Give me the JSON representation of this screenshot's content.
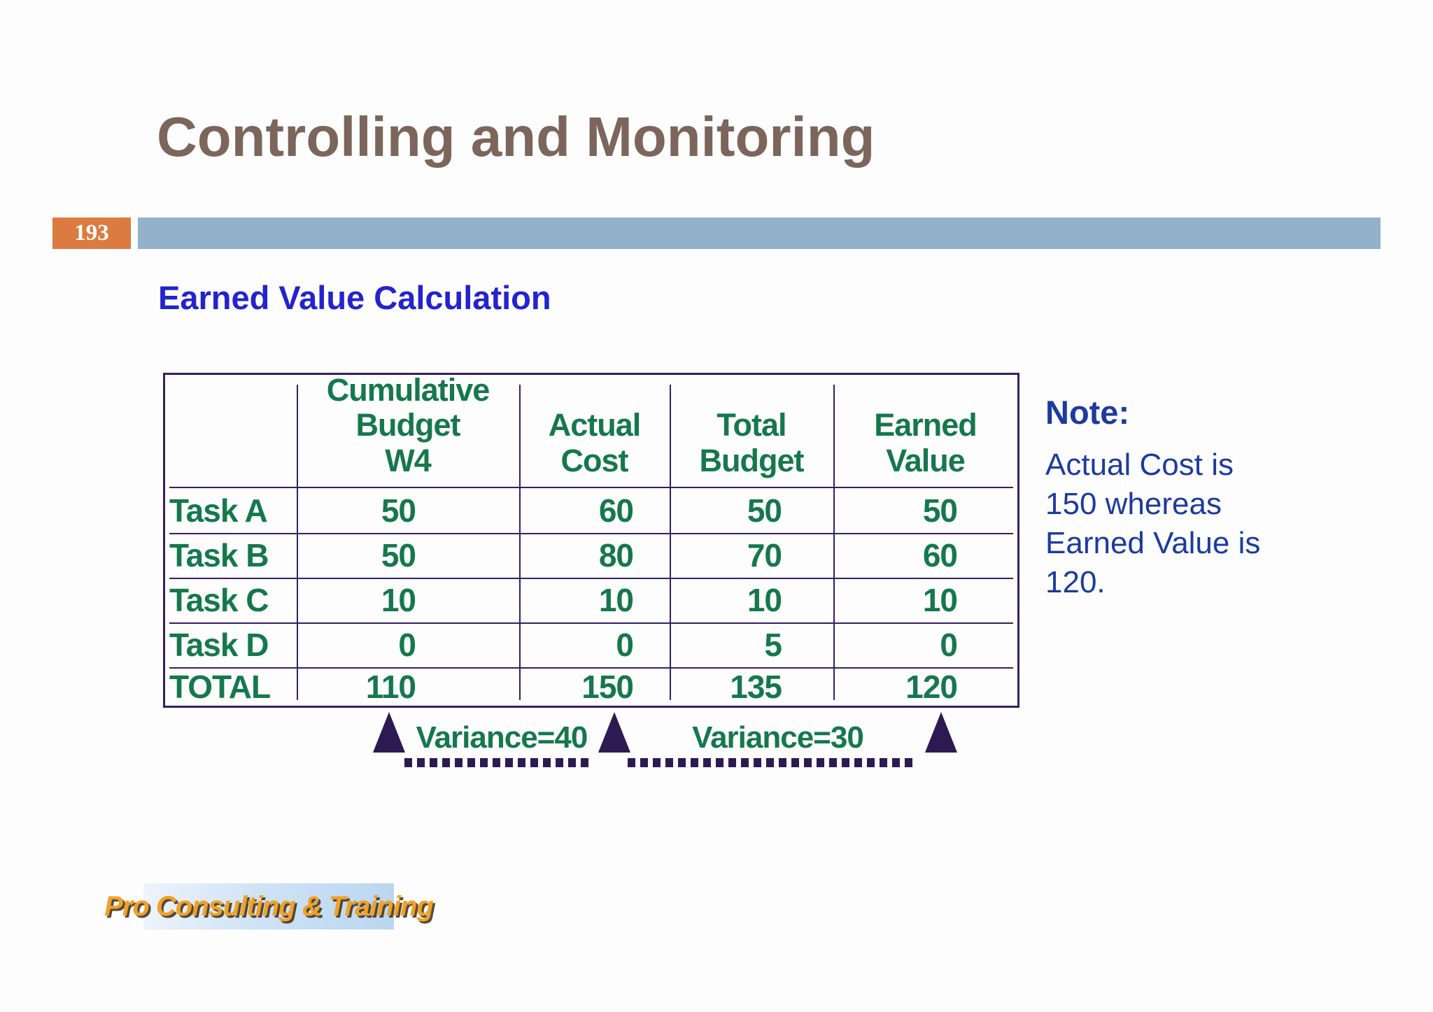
{
  "slide": {
    "title": "Controlling and Monitoring",
    "page_number": "193",
    "subtitle": "Earned Value Calculation"
  },
  "table": {
    "columns": [
      {
        "label": "Cumulative\nBudget\nW4"
      },
      {
        "label": "Actual\nCost"
      },
      {
        "label": "Total\nBudget"
      },
      {
        "label": "Earned\nValue"
      }
    ],
    "rows": [
      {
        "label": "Task A",
        "values": [
          "50",
          "60",
          "50",
          "50"
        ]
      },
      {
        "label": "Task B",
        "values": [
          "50",
          "80",
          "70",
          "60"
        ]
      },
      {
        "label": "Task C",
        "values": [
          "10",
          "10",
          "10",
          "10"
        ]
      },
      {
        "label": "Task D",
        "values": [
          "0",
          "0",
          "5",
          "0"
        ]
      },
      {
        "label": "TOTAL",
        "values": [
          "110",
          "150",
          "135",
          "120"
        ]
      }
    ]
  },
  "annotations": {
    "variance_left": "Variance=40",
    "variance_right": "Variance=30"
  },
  "note": {
    "heading": "Note:",
    "body": "Actual Cost is 150 whereas Earned Value is 120."
  },
  "footer": {
    "logo_text": "Pro Consulting & Training"
  },
  "colors": {
    "title_brown": "#7c655a",
    "bar_blue": "#93b1ca",
    "page_box_orange": "#dc7b41",
    "heading_blue": "#2323cf",
    "table_green": "#15784c",
    "table_rule_purple": "#352060",
    "triangle_purple": "#2e1a52",
    "note_blue": "#1c3b9e",
    "logo_orange": "#f0a128"
  }
}
